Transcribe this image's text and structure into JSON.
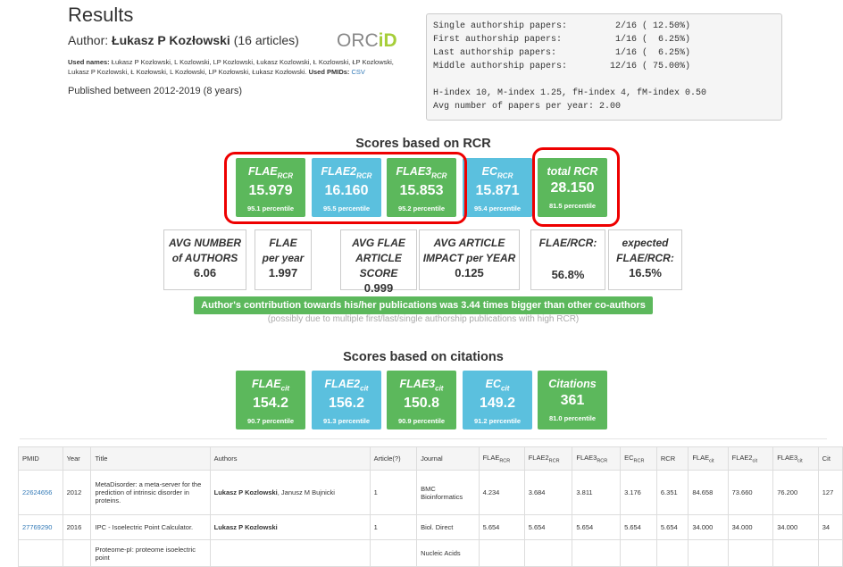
{
  "header": {
    "title": "Results",
    "author_prefix": "Author:",
    "author_name": "Łukasz P Kozłowski",
    "author_count": "(16 articles)",
    "orcid_prefix": "ORC",
    "orcid_suffix": "iD",
    "used_names_label": "Used names:",
    "used_names": "Łukasz P Kozlowski, L Kozlowski, LP Kozlowski, Łukasz Kozlowski, Ł Kozlowski, ŁP Kozlowski, Lukasz P Kozlowski, Ł Kozłowski, L Kozłowski, LP Kozłowski, Łukasz Kozłowski.",
    "used_pmids_label": "Used PMIDs:",
    "csv": "CSV",
    "published": "Published between 2012-2019 (8 years)"
  },
  "stats_box": {
    "lines": [
      "Single authorship papers:         2/16 ( 12.50%)",
      "First authorship papers:          1/16 (  6.25%)",
      "Last authorship papers:           1/16 (  6.25%)",
      "Middle authorship papers:        12/16 ( 75.00%)",
      "",
      "H-index 10, M-index 1.25, fH-index 4, fM-index 0.50",
      "Avg number of papers per year: 2.00"
    ]
  },
  "rcr": {
    "heading": "Scores based on RCR",
    "tiles": [
      {
        "name": "FLAE",
        "sub": "RCR",
        "value": "15.979",
        "pct": "95.1 percentile",
        "color": "#5cb85c"
      },
      {
        "name": "FLAE2",
        "sub": "RCR",
        "value": "16.160",
        "pct": "95.5 percentile",
        "color": "#5bc0de"
      },
      {
        "name": "FLAE3",
        "sub": "RCR",
        "value": "15.853",
        "pct": "95.2 percentile",
        "color": "#5cb85c"
      },
      {
        "name": "EC",
        "sub": "RCR",
        "value": "15.871",
        "pct": "95.4 percentile",
        "color": "#5bc0de"
      },
      {
        "name": "total RCR",
        "sub": "",
        "value": "28.150",
        "pct": "81.5 percentile",
        "color": "#5cb85c"
      }
    ],
    "stats": [
      {
        "l1": "AVG NUMBER",
        "l2": "of AUTHORS",
        "value": "6.06"
      },
      {
        "l1": "FLAE",
        "l2": "per year",
        "value": "1.997"
      },
      {
        "l1": "AVG FLAE",
        "l2": "ARTICLE SCORE",
        "value": "0.999"
      },
      {
        "l1": "AVG ARTICLE",
        "l2": "IMPACT per YEAR",
        "value": "0.125"
      },
      {
        "l1": "FLAE/RCR:",
        "l2": "",
        "value": "56.8%"
      },
      {
        "l1": "expected",
        "l2": "FLAE/RCR:",
        "value": "16.5%"
      }
    ],
    "contribution": "Author's contribution towards his/her publications was 3.44 times bigger than other co-authors",
    "possibly": "(possibly due to multiple first/last/single authorship publications with high RCR)"
  },
  "cit": {
    "heading": "Scores based on citations",
    "tiles": [
      {
        "name": "FLAE",
        "sub": "cit",
        "value": "154.2",
        "pct": "90.7 percentile",
        "color": "#5cb85c"
      },
      {
        "name": "FLAE2",
        "sub": "cit",
        "value": "156.2",
        "pct": "91.3 percentile",
        "color": "#5bc0de"
      },
      {
        "name": "FLAE3",
        "sub": "cit",
        "value": "150.8",
        "pct": "90.9 percentile",
        "color": "#5cb85c"
      },
      {
        "name": "EC",
        "sub": "cit",
        "value": "149.2",
        "pct": "91.2 percentile",
        "color": "#5bc0de"
      },
      {
        "name": "Citations",
        "sub": "",
        "value": "361",
        "pct": "81.0 percentile",
        "color": "#5cb85c"
      }
    ]
  },
  "table": {
    "headers": [
      {
        "t": "PMID",
        "s": ""
      },
      {
        "t": "Year",
        "s": ""
      },
      {
        "t": "Title",
        "s": ""
      },
      {
        "t": "Authors",
        "s": ""
      },
      {
        "t": "Article(?)",
        "s": ""
      },
      {
        "t": "Journal",
        "s": ""
      },
      {
        "t": "FLAE",
        "s": "RCR"
      },
      {
        "t": "FLAE2",
        "s": "RCR"
      },
      {
        "t": "FLAE3",
        "s": "RCR"
      },
      {
        "t": "EC",
        "s": "RCR"
      },
      {
        "t": "RCR",
        "s": ""
      },
      {
        "t": "FLAE",
        "s": "cit"
      },
      {
        "t": "FLAE2",
        "s": "cit"
      },
      {
        "t": "FLAE3",
        "s": "cit"
      },
      {
        "t": "Cit",
        "s": ""
      }
    ],
    "rows": [
      {
        "pmid": "22624656",
        "year": "2012",
        "title": "MetaDisorder: a meta-server for the prediction of intrinsic disorder in proteins.",
        "author_bold": "Lukasz P Kozlowski",
        "author_rest": ", Janusz M Bujnicki",
        "article": "1",
        "journal": "BMC Bioinformatics",
        "v": [
          "4.234",
          "3.684",
          "3.811",
          "3.176",
          "6.351",
          "84.658",
          "73.660",
          "76.200",
          "127"
        ]
      },
      {
        "pmid": "27769290",
        "year": "2016",
        "title": "IPC - Isoelectric Point Calculator.",
        "author_bold": "Lukasz P Kozlowski",
        "author_rest": "",
        "article": "1",
        "journal": "Biol. Direct",
        "v": [
          "5.654",
          "5.654",
          "5.654",
          "5.654",
          "5.654",
          "34.000",
          "34.000",
          "34.000",
          "34"
        ]
      },
      {
        "pmid": "",
        "year": "",
        "title": "Proteome-pI: proteome isoelectric point",
        "author_bold": "",
        "author_rest": "",
        "article": "",
        "journal": "Nucleic Acids",
        "v": [
          "",
          "",
          "",
          "",
          "",
          "",
          "",
          "",
          ""
        ]
      }
    ]
  }
}
